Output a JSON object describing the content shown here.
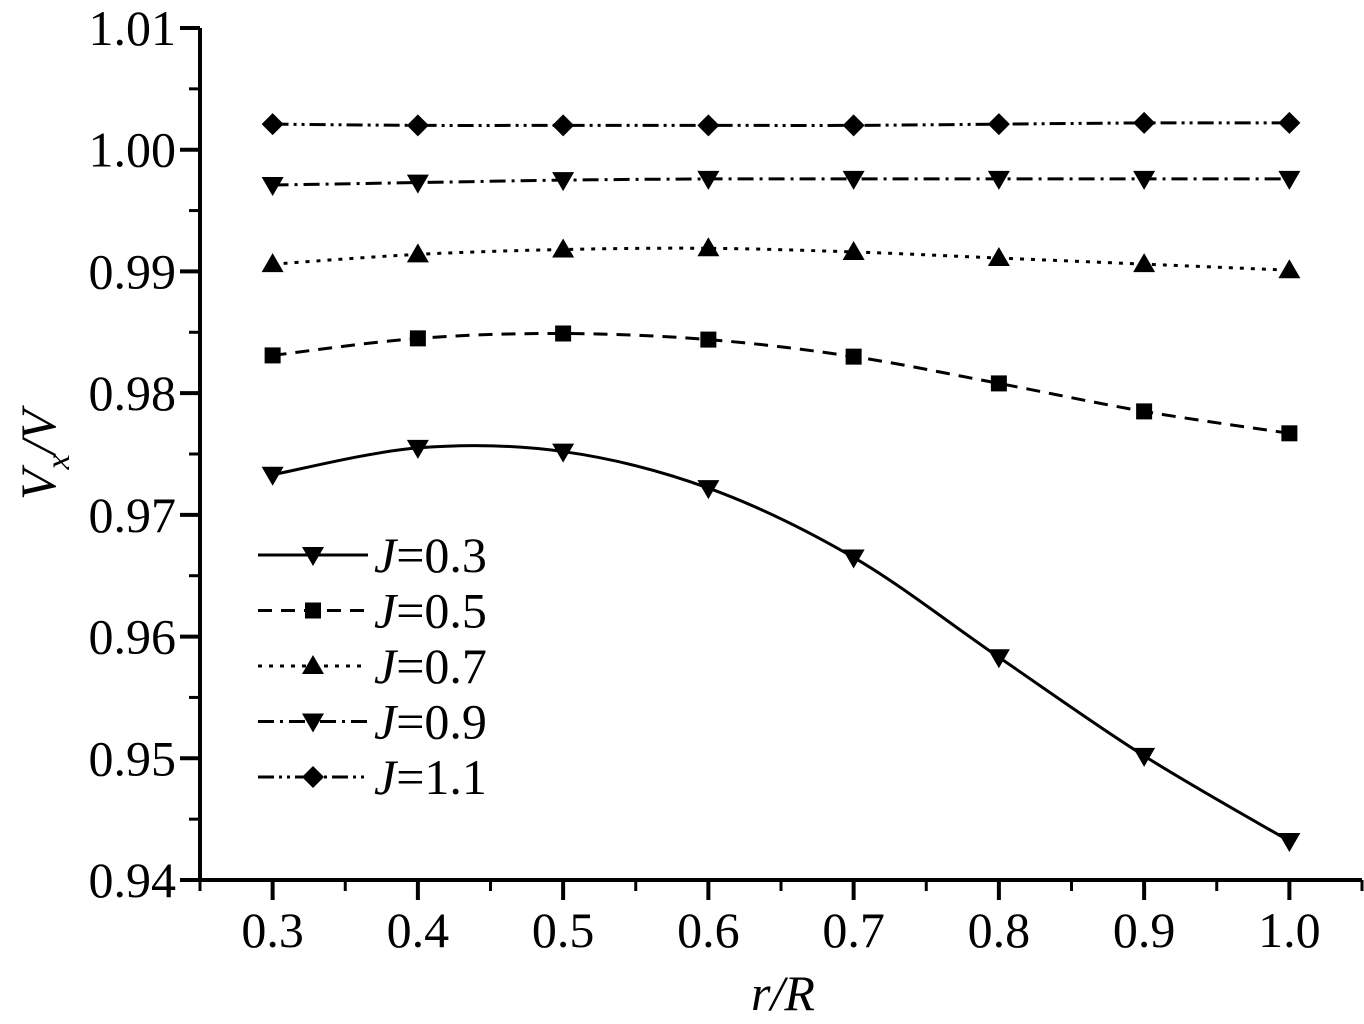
{
  "chart_data": {
    "type": "line",
    "title": "",
    "xlabel": "r/R",
    "ylabel": "Vx/V",
    "ylabel_parts": {
      "main": "V",
      "sub": "x",
      "tail": "/V"
    },
    "x": [
      0.3,
      0.4,
      0.5,
      0.6,
      0.7,
      0.8,
      0.9,
      1.0
    ],
    "xlim": [
      0.25,
      1.05
    ],
    "ylim": [
      0.94,
      1.01
    ],
    "x_ticks": [
      "0.3",
      "0.4",
      "0.5",
      "0.6",
      "0.7",
      "0.8",
      "0.9",
      "1.0"
    ],
    "y_ticks": [
      "0.94",
      "0.95",
      "0.96",
      "0.97",
      "0.98",
      "0.99",
      "1.00",
      "1.01"
    ],
    "grid": false,
    "legend_position": "lower-left",
    "series": [
      {
        "name": "J=0.3",
        "label_var": "J",
        "label_val": "=0.3",
        "marker": "triangle-down",
        "dash": "",
        "values": [
          0.9733,
          0.9755,
          0.9752,
          0.9722,
          0.9665,
          0.9583,
          0.9502,
          0.9432
        ]
      },
      {
        "name": "J=0.5",
        "label_var": "J",
        "label_val": "=0.5",
        "marker": "square",
        "dash": "14,9",
        "values": [
          0.9831,
          0.9845,
          0.9849,
          0.9844,
          0.983,
          0.9808,
          0.9785,
          0.9767
        ]
      },
      {
        "name": "J=0.7",
        "label_var": "J",
        "label_val": "=0.7",
        "marker": "triangle-up",
        "dash": "4,7",
        "values": [
          0.9906,
          0.9914,
          0.9918,
          0.9919,
          0.9916,
          0.9911,
          0.9906,
          0.9901
        ]
      },
      {
        "name": "J=0.9",
        "label_var": "J",
        "label_val": "=0.9",
        "marker": "triangle-down",
        "dash": "16,6,3,6",
        "values": [
          0.9971,
          0.9973,
          0.9975,
          0.9976,
          0.9976,
          0.9976,
          0.9976,
          0.9976
        ]
      },
      {
        "name": "J=1.1",
        "label_var": "J",
        "label_val": "=1.1",
        "marker": "diamond",
        "dash": "16,5,3,5,3,5",
        "values": [
          1.0021,
          1.002,
          1.002,
          1.002,
          1.002,
          1.0021,
          1.0022,
          1.0022
        ]
      }
    ],
    "colors": {
      "line": "#000000",
      "background": "#ffffff"
    }
  }
}
